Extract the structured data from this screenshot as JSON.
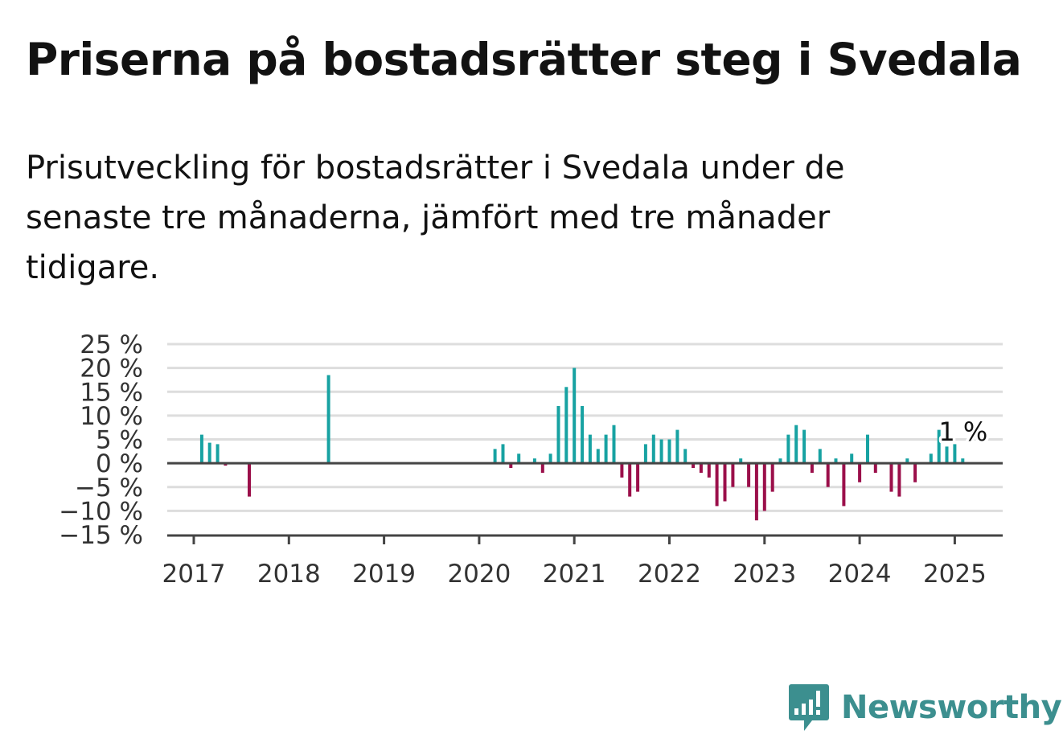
{
  "title": "Priserna på bostadsrätter steg i Svedala",
  "subtitle": "Prisutveckling för bostadsrätter i Svedala under de senaste tre månaderna, jämfört med tre månader tidigare.",
  "brand": {
    "name": "Newsworthy",
    "logo_icon": "newsworthy-chart-bubble-icon"
  },
  "colors": {
    "positive": "#17a2a2",
    "negative": "#9b0f4a",
    "zero_line": "#444444",
    "grid": "#dddddd",
    "brand": "#3c8f8f"
  },
  "chart_data": {
    "type": "bar",
    "title": "",
    "xlabel": "",
    "ylabel": "",
    "ylim": [
      -15,
      25
    ],
    "y_ticks": [
      {
        "value": 25,
        "label": "25 %"
      },
      {
        "value": 20,
        "label": "20 %"
      },
      {
        "value": 15,
        "label": "15 %"
      },
      {
        "value": 10,
        "label": "10 %"
      },
      {
        "value": 5,
        "label": "5 %"
      },
      {
        "value": 0,
        "label": "0 %"
      },
      {
        "value": -5,
        "label": "−5 %"
      },
      {
        "value": -10,
        "label": "−10 %"
      },
      {
        "value": -15,
        "label": "−15 %"
      }
    ],
    "x_ticks": [
      "2017",
      "2018",
      "2019",
      "2020",
      "2021",
      "2022",
      "2023",
      "2024",
      "2025"
    ],
    "grid": true,
    "last_value_label": "1 %",
    "x": [
      "2017-01",
      "2017-02",
      "2017-03",
      "2017-04",
      "2017-05",
      "2017-06",
      "2017-07",
      "2017-08",
      "2017-09",
      "2017-10",
      "2017-11",
      "2017-12",
      "2018-01",
      "2018-02",
      "2018-03",
      "2018-04",
      "2018-05",
      "2018-06",
      "2018-07",
      "2018-08",
      "2018-09",
      "2018-10",
      "2018-11",
      "2018-12",
      "2019-01",
      "2019-02",
      "2019-03",
      "2019-04",
      "2019-05",
      "2019-06",
      "2019-07",
      "2019-08",
      "2019-09",
      "2019-10",
      "2019-11",
      "2019-12",
      "2020-01",
      "2020-02",
      "2020-03",
      "2020-04",
      "2020-05",
      "2020-06",
      "2020-07",
      "2020-08",
      "2020-09",
      "2020-10",
      "2020-11",
      "2020-12",
      "2021-01",
      "2021-02",
      "2021-03",
      "2021-04",
      "2021-05",
      "2021-06",
      "2021-07",
      "2021-08",
      "2021-09",
      "2021-10",
      "2021-11",
      "2021-12",
      "2022-01",
      "2022-02",
      "2022-03",
      "2022-04",
      "2022-05",
      "2022-06",
      "2022-07",
      "2022-08",
      "2022-09",
      "2022-10",
      "2022-11",
      "2022-12",
      "2023-01",
      "2023-02",
      "2023-03",
      "2023-04",
      "2023-05",
      "2023-06",
      "2023-07",
      "2023-08",
      "2023-09",
      "2023-10",
      "2023-11",
      "2023-12",
      "2024-01",
      "2024-02",
      "2024-03",
      "2024-04",
      "2024-05",
      "2024-06",
      "2024-07",
      "2024-08",
      "2024-09",
      "2024-10",
      "2024-11",
      "2024-12",
      "2025-01",
      "2025-02"
    ],
    "values": [
      0,
      6,
      4.3,
      4,
      -0.5,
      0,
      0,
      -7,
      0,
      0,
      0,
      0,
      0,
      0,
      0,
      0,
      0,
      18.5,
      0,
      0,
      0,
      0,
      0,
      0,
      0,
      0,
      0,
      0,
      0,
      0,
      0,
      0,
      0,
      0,
      0,
      0,
      0,
      0,
      3,
      4,
      -1,
      2,
      0,
      1,
      -2,
      2,
      12,
      16,
      20,
      12,
      6,
      3,
      6,
      8,
      -3,
      -7,
      -6,
      4,
      6,
      5,
      5,
      7,
      3,
      -1,
      -2,
      -3,
      -9,
      -8,
      -5,
      1,
      -5,
      -12,
      -10,
      -6,
      1,
      6,
      8,
      7,
      -2,
      3,
      -5,
      1,
      -9,
      2,
      -4,
      6,
      -2,
      0,
      -6,
      -7,
      1,
      -4,
      0,
      2,
      7,
      3.5,
      4,
      1
    ]
  }
}
